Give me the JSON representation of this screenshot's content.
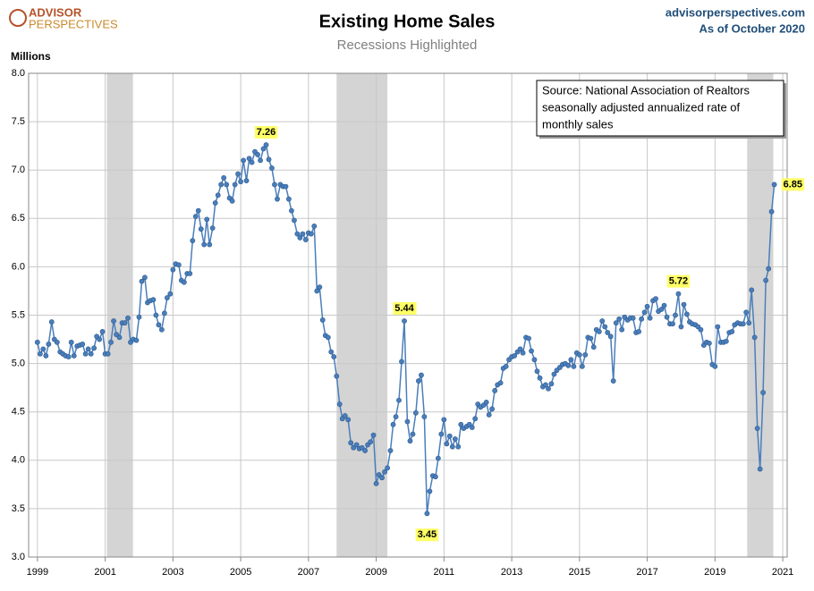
{
  "logo": [
    "ADVISOR",
    "PERSPECTIVES"
  ],
  "site": "advisorperspectives.com",
  "as_of": "As of October 2020",
  "chart_data": {
    "type": "line",
    "title": "Existing Home Sales",
    "subtitle": "Recessions Highlighted",
    "y_label": "Millions",
    "note": [
      "Source: National Association of Realtors",
      "seasonally adjusted annualized rate of",
      "monthly  sales"
    ],
    "color": "#4a7ebb",
    "recession_color": "#d4d4d4",
    "grid": true,
    "xlim": [
      1998.74,
      2021.13
    ],
    "xticks": [
      1999,
      2001,
      2003,
      2005,
      2007,
      2009,
      2011,
      2013,
      2015,
      2017,
      2019,
      2021
    ],
    "ylim": [
      3,
      8
    ],
    "yticks": [
      {
        "value": 3,
        "label": "3.0"
      },
      3.5,
      {
        "value": 4,
        "label": "4.0"
      },
      4.5,
      {
        "value": 5,
        "label": "5.0"
      },
      5.5,
      {
        "value": 6,
        "label": "6.0"
      },
      6.5,
      {
        "value": 7,
        "label": "7.0"
      },
      7.5,
      {
        "value": 8,
        "label": "8.0"
      }
    ],
    "recessions": [
      [
        2001.05,
        2001.82
      ],
      [
        2007.83,
        2009.33
      ],
      [
        2019.95,
        2020.72
      ]
    ],
    "x": [
      1999,
      1999.08,
      1999.17,
      1999.25,
      1999.33,
      1999.42,
      1999.5,
      1999.58,
      1999.67,
      1999.75,
      1999.83,
      1999.92,
      2000,
      2000.08,
      2000.17,
      2000.25,
      2000.33,
      2000.42,
      2000.5,
      2000.58,
      2000.67,
      2000.75,
      2000.83,
      2000.92,
      2001,
      2001.08,
      2001.17,
      2001.25,
      2001.33,
      2001.42,
      2001.5,
      2001.58,
      2001.67,
      2001.75,
      2001.83,
      2001.92,
      2002,
      2002.08,
      2002.17,
      2002.25,
      2002.33,
      2002.42,
      2002.5,
      2002.58,
      2002.67,
      2002.75,
      2002.83,
      2002.92,
      2003,
      2003.08,
      2003.17,
      2003.25,
      2003.33,
      2003.42,
      2003.5,
      2003.58,
      2003.67,
      2003.75,
      2003.83,
      2003.92,
      2004,
      2004.08,
      2004.17,
      2004.25,
      2004.33,
      2004.42,
      2004.5,
      2004.58,
      2004.67,
      2004.75,
      2004.83,
      2004.92,
      2005,
      2005.08,
      2005.17,
      2005.25,
      2005.33,
      2005.42,
      2005.5,
      2005.58,
      2005.67,
      2005.75,
      2005.83,
      2005.92,
      2006,
      2006.08,
      2006.17,
      2006.25,
      2006.33,
      2006.42,
      2006.5,
      2006.58,
      2006.67,
      2006.75,
      2006.83,
      2006.92,
      2007,
      2007.08,
      2007.17,
      2007.25,
      2007.33,
      2007.42,
      2007.5,
      2007.58,
      2007.67,
      2007.75,
      2007.83,
      2007.92,
      2008,
      2008.08,
      2008.17,
      2008.25,
      2008.33,
      2008.42,
      2008.5,
      2008.58,
      2008.67,
      2008.75,
      2008.83,
      2008.92,
      2009,
      2009.08,
      2009.17,
      2009.25,
      2009.33,
      2009.42,
      2009.5,
      2009.58,
      2009.67,
      2009.75,
      2009.83,
      2009.92,
      2010,
      2010.08,
      2010.17,
      2010.25,
      2010.33,
      2010.42,
      2010.5,
      2010.58,
      2010.67,
      2010.75,
      2010.83,
      2010.92,
      2011,
      2011.08,
      2011.17,
      2011.25,
      2011.33,
      2011.42,
      2011.5,
      2011.58,
      2011.67,
      2011.75,
      2011.83,
      2011.92,
      2012,
      2012.08,
      2012.17,
      2012.25,
      2012.33,
      2012.42,
      2012.5,
      2012.58,
      2012.67,
      2012.75,
      2012.83,
      2012.92,
      2013,
      2013.08,
      2013.17,
      2013.25,
      2013.33,
      2013.42,
      2013.5,
      2013.58,
      2013.67,
      2013.75,
      2013.83,
      2013.92,
      2014,
      2014.08,
      2014.17,
      2014.25,
      2014.33,
      2014.42,
      2014.5,
      2014.58,
      2014.67,
      2014.75,
      2014.83,
      2014.92,
      2015,
      2015.08,
      2015.17,
      2015.25,
      2015.33,
      2015.42,
      2015.5,
      2015.58,
      2015.67,
      2015.75,
      2015.83,
      2015.92,
      2016,
      2016.08,
      2016.17,
      2016.25,
      2016.33,
      2016.42,
      2016.5,
      2016.58,
      2016.67,
      2016.75,
      2016.83,
      2016.92,
      2017,
      2017.08,
      2017.17,
      2017.25,
      2017.33,
      2017.42,
      2017.5,
      2017.58,
      2017.67,
      2017.75,
      2017.83,
      2017.92,
      2018,
      2018.08,
      2018.17,
      2018.25,
      2018.33,
      2018.42,
      2018.5,
      2018.58,
      2018.67,
      2018.75,
      2018.83,
      2018.92,
      2019,
      2019.08,
      2019.17,
      2019.25,
      2019.33,
      2019.42,
      2019.5,
      2019.58,
      2019.67,
      2019.75,
      2019.83,
      2019.92,
      2020,
      2020.08,
      2020.17,
      2020.25,
      2020.33,
      2020.42,
      2020.5,
      2020.58,
      2020.67,
      2020.75
    ],
    "values": [
      5.22,
      5.1,
      5.15,
      5.08,
      5.2,
      5.43,
      5.25,
      5.22,
      5.12,
      5.1,
      5.08,
      5.07,
      5.22,
      5.08,
      5.18,
      5.19,
      5.2,
      5.1,
      5.15,
      5.1,
      5.16,
      5.28,
      5.25,
      5.33,
      5.1,
      5.1,
      5.22,
      5.44,
      5.3,
      5.27,
      5.42,
      5.42,
      5.47,
      5.22,
      5.25,
      5.24,
      5.48,
      5.85,
      5.89,
      5.63,
      5.65,
      5.66,
      5.5,
      5.4,
      5.35,
      5.52,
      5.68,
      5.72,
      5.97,
      6.03,
      6.02,
      5.86,
      5.84,
      5.93,
      5.93,
      6.27,
      6.52,
      6.58,
      6.39,
      6.23,
      6.49,
      6.23,
      6.4,
      6.66,
      6.74,
      6.85,
      6.92,
      6.85,
      6.71,
      6.68,
      6.85,
      6.96,
      6.88,
      7.1,
      6.89,
      7.12,
      7.08,
      7.19,
      7.16,
      7.1,
      7.22,
      7.26,
      7.11,
      7.02,
      6.85,
      6.7,
      6.85,
      6.83,
      6.83,
      6.7,
      6.58,
      6.48,
      6.34,
      6.3,
      6.34,
      6.28,
      6.35,
      6.34,
      6.42,
      5.75,
      5.79,
      5.45,
      5.29,
      5.27,
      5.12,
      5.07,
      4.87,
      4.58,
      4.43,
      4.46,
      4.42,
      4.18,
      4.13,
      4.16,
      4.12,
      4.13,
      4.1,
      4.16,
      4.19,
      4.26,
      3.76,
      3.85,
      3.82,
      3.88,
      3.92,
      4.1,
      4.37,
      4.45,
      4.62,
      5.02,
      5.44,
      4.4,
      4.2,
      4.27,
      4.49,
      4.82,
      4.88,
      4.45,
      3.45,
      3.68,
      3.84,
      3.83,
      4.02,
      4.27,
      4.42,
      4.17,
      4.25,
      4.14,
      4.22,
      4.14,
      4.37,
      4.33,
      4.35,
      4.37,
      4.34,
      4.43,
      4.58,
      4.55,
      4.57,
      4.6,
      4.47,
      4.53,
      4.72,
      4.78,
      4.8,
      4.95,
      4.97,
      5.04,
      5.07,
      5.08,
      5.12,
      5.15,
      5.11,
      5.27,
      5.26,
      5.13,
      5.04,
      4.92,
      4.85,
      4.76,
      4.78,
      4.74,
      4.79,
      4.89,
      4.93,
      4.96,
      4.99,
      5.0,
      4.98,
      5.04,
      4.97,
      5.11,
      5.09,
      4.97,
      5.09,
      5.27,
      5.26,
      5.17,
      5.35,
      5.33,
      5.44,
      5.38,
      5.32,
      5.28,
      4.82,
      5.42,
      5.46,
      5.35,
      5.48,
      5.45,
      5.47,
      5.47,
      5.32,
      5.33,
      5.46,
      5.53,
      5.59,
      5.47,
      5.65,
      5.67,
      5.54,
      5.56,
      5.6,
      5.48,
      5.41,
      5.41,
      5.5,
      5.72,
      5.38,
      5.61,
      5.51,
      5.43,
      5.41,
      5.4,
      5.38,
      5.35,
      5.19,
      5.22,
      5.21,
      4.99,
      4.97,
      5.38,
      5.22,
      5.22,
      5.23,
      5.32,
      5.33,
      5.4,
      5.42,
      5.41,
      5.41,
      5.53,
      5.42,
      5.76,
      5.27,
      4.33,
      3.91,
      4.7,
      5.86,
      5.98,
      6.57,
      6.85
    ],
    "value_labels": [
      null,
      null,
      null,
      null,
      null,
      null,
      null,
      null,
      null,
      null,
      null,
      null,
      null,
      null,
      null,
      null,
      null,
      null,
      null,
      null,
      null,
      null,
      null,
      null,
      null,
      null,
      null,
      null,
      null,
      null,
      null,
      null,
      null,
      null,
      null,
      null,
      null,
      null,
      null,
      null,
      null,
      null,
      null,
      null,
      null,
      null,
      null,
      null,
      null,
      null,
      null,
      null,
      null,
      null,
      null,
      null,
      null,
      null,
      null,
      null,
      null,
      null,
      null,
      null,
      null,
      null,
      null,
      null,
      null,
      null,
      null,
      null,
      null,
      null,
      null,
      null,
      null,
      null,
      null,
      null,
      null,
      "7.26",
      null,
      null,
      null,
      null,
      null,
      null,
      null,
      null,
      null,
      null,
      null,
      null,
      null,
      null,
      null,
      null,
      null,
      null,
      null,
      null,
      null,
      null,
      null,
      null,
      null,
      null,
      null,
      null,
      null,
      null,
      null,
      null,
      null,
      null,
      null,
      null,
      null,
      null,
      null,
      null,
      null,
      null,
      null,
      null,
      null,
      null,
      null,
      null,
      "5.44",
      null,
      null,
      null,
      null,
      null,
      null,
      null,
      "3.45",
      null,
      null,
      null,
      null,
      null,
      null,
      null,
      null,
      null,
      null,
      null,
      null,
      null,
      null,
      null,
      null,
      null,
      null,
      null,
      null,
      null,
      null,
      null,
      null,
      null,
      null,
      null,
      null,
      null,
      null,
      null,
      null,
      null,
      null,
      null,
      null,
      null,
      null,
      null,
      null,
      null,
      null,
      null,
      null,
      null,
      null,
      null,
      null,
      null,
      null,
      null,
      null,
      null,
      null,
      null,
      null,
      null,
      null,
      null,
      null,
      null,
      null,
      null,
      null,
      null,
      null,
      null,
      null,
      null,
      null,
      null,
      null,
      null,
      null,
      null,
      null,
      null,
      null,
      null,
      null,
      null,
      null,
      null,
      null,
      null,
      null,
      null,
      null,
      "5.72",
      null,
      null,
      null,
      null,
      null,
      null,
      null,
      null,
      null,
      null,
      null,
      null,
      null,
      null,
      null,
      null,
      null,
      null,
      null,
      null,
      null,
      null,
      null,
      null,
      null,
      null,
      null,
      null,
      null,
      null,
      null,
      null,
      null,
      "6.85"
    ]
  }
}
